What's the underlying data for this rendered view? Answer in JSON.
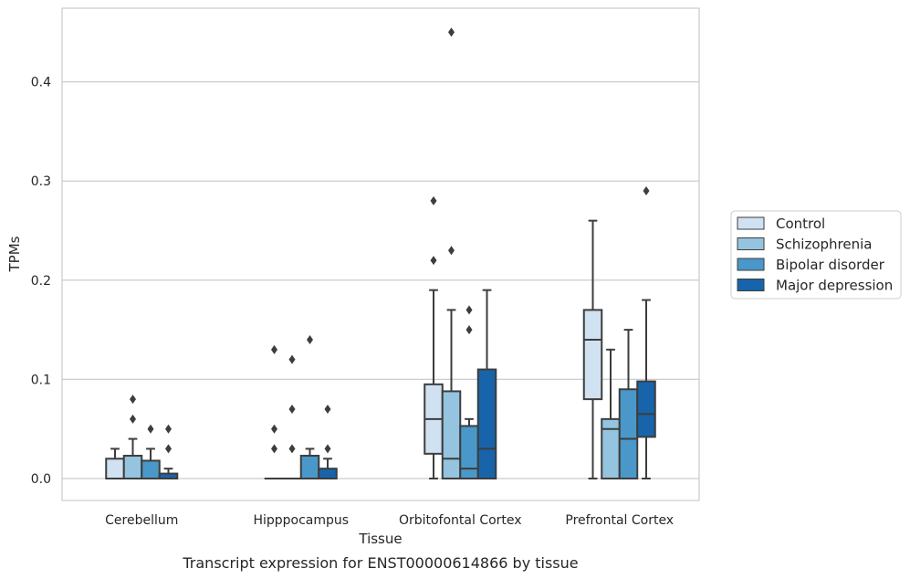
{
  "chart_data": {
    "type": "box",
    "title": "",
    "caption": "Transcript expression for ENST00000614866 by tissue",
    "xlabel": "Tissue",
    "ylabel": "TPMs",
    "ylim": [
      -0.022,
      0.475
    ],
    "yticks": [
      0.0,
      0.1,
      0.2,
      0.3,
      0.4
    ],
    "ytick_labels": [
      "0.0",
      "0.1",
      "0.2",
      "0.3",
      "0.4"
    ],
    "grid": "horizontal",
    "legend_position": "right",
    "categories": [
      "Cerebellum",
      "Hipppocampus",
      "Orbitofontal Cortex",
      "Prefrontal Cortex"
    ],
    "series": [
      {
        "name": "Control",
        "color": "#d0e1f2",
        "boxes": [
          {
            "whislo": 0.0,
            "q1": 0.0,
            "med": 0.0,
            "q3": 0.02,
            "whishi": 0.03,
            "fliers": []
          },
          {
            "whislo": 0.0,
            "q1": 0.0,
            "med": 0.0,
            "q3": 0.0,
            "whishi": 0.0,
            "fliers": [
              0.03,
              0.05,
              0.13
            ]
          },
          {
            "whislo": 0.0,
            "q1": 0.025,
            "med": 0.06,
            "q3": 0.095,
            "whishi": 0.19,
            "fliers": [
              0.22,
              0.28
            ]
          },
          {
            "whislo": 0.0,
            "q1": 0.08,
            "med": 0.14,
            "q3": 0.17,
            "whishi": 0.26,
            "fliers": []
          }
        ]
      },
      {
        "name": "Schizophrenia",
        "color": "#94c4df",
        "boxes": [
          {
            "whislo": 0.0,
            "q1": 0.0,
            "med": 0.0,
            "q3": 0.023,
            "whishi": 0.04,
            "fliers": [
              0.06,
              0.08
            ]
          },
          {
            "whislo": 0.0,
            "q1": 0.0,
            "med": 0.0,
            "q3": 0.0,
            "whishi": 0.0,
            "fliers": [
              0.03,
              0.07,
              0.12
            ]
          },
          {
            "whislo": 0.0,
            "q1": 0.0,
            "med": 0.02,
            "q3": 0.088,
            "whishi": 0.17,
            "fliers": [
              0.23,
              0.45
            ]
          },
          {
            "whislo": 0.0,
            "q1": 0.0,
            "med": 0.05,
            "q3": 0.06,
            "whishi": 0.13,
            "fliers": []
          }
        ]
      },
      {
        "name": "Bipolar disorder",
        "color": "#4a98c9",
        "boxes": [
          {
            "whislo": 0.0,
            "q1": 0.0,
            "med": 0.0,
            "q3": 0.018,
            "whishi": 0.03,
            "fliers": [
              0.05
            ]
          },
          {
            "whislo": 0.0,
            "q1": 0.0,
            "med": 0.0,
            "q3": 0.023,
            "whishi": 0.03,
            "fliers": [
              0.14
            ]
          },
          {
            "whislo": 0.0,
            "q1": 0.0,
            "med": 0.01,
            "q3": 0.053,
            "whishi": 0.06,
            "fliers": [
              0.15,
              0.17
            ]
          },
          {
            "whislo": 0.0,
            "q1": 0.0,
            "med": 0.04,
            "q3": 0.09,
            "whishi": 0.15,
            "fliers": []
          }
        ]
      },
      {
        "name": "Major depression",
        "color": "#1764ab",
        "boxes": [
          {
            "whislo": 0.0,
            "q1": 0.0,
            "med": 0.0,
            "q3": 0.005,
            "whishi": 0.01,
            "fliers": [
              0.03,
              0.05
            ]
          },
          {
            "whislo": 0.0,
            "q1": 0.0,
            "med": 0.0,
            "q3": 0.01,
            "whishi": 0.02,
            "fliers": [
              0.03,
              0.07
            ]
          },
          {
            "whislo": 0.0,
            "q1": 0.0,
            "med": 0.03,
            "q3": 0.11,
            "whishi": 0.19,
            "fliers": []
          },
          {
            "whislo": 0.0,
            "q1": 0.042,
            "med": 0.065,
            "q3": 0.098,
            "whishi": 0.18,
            "fliers": [
              0.29
            ]
          }
        ]
      }
    ]
  }
}
